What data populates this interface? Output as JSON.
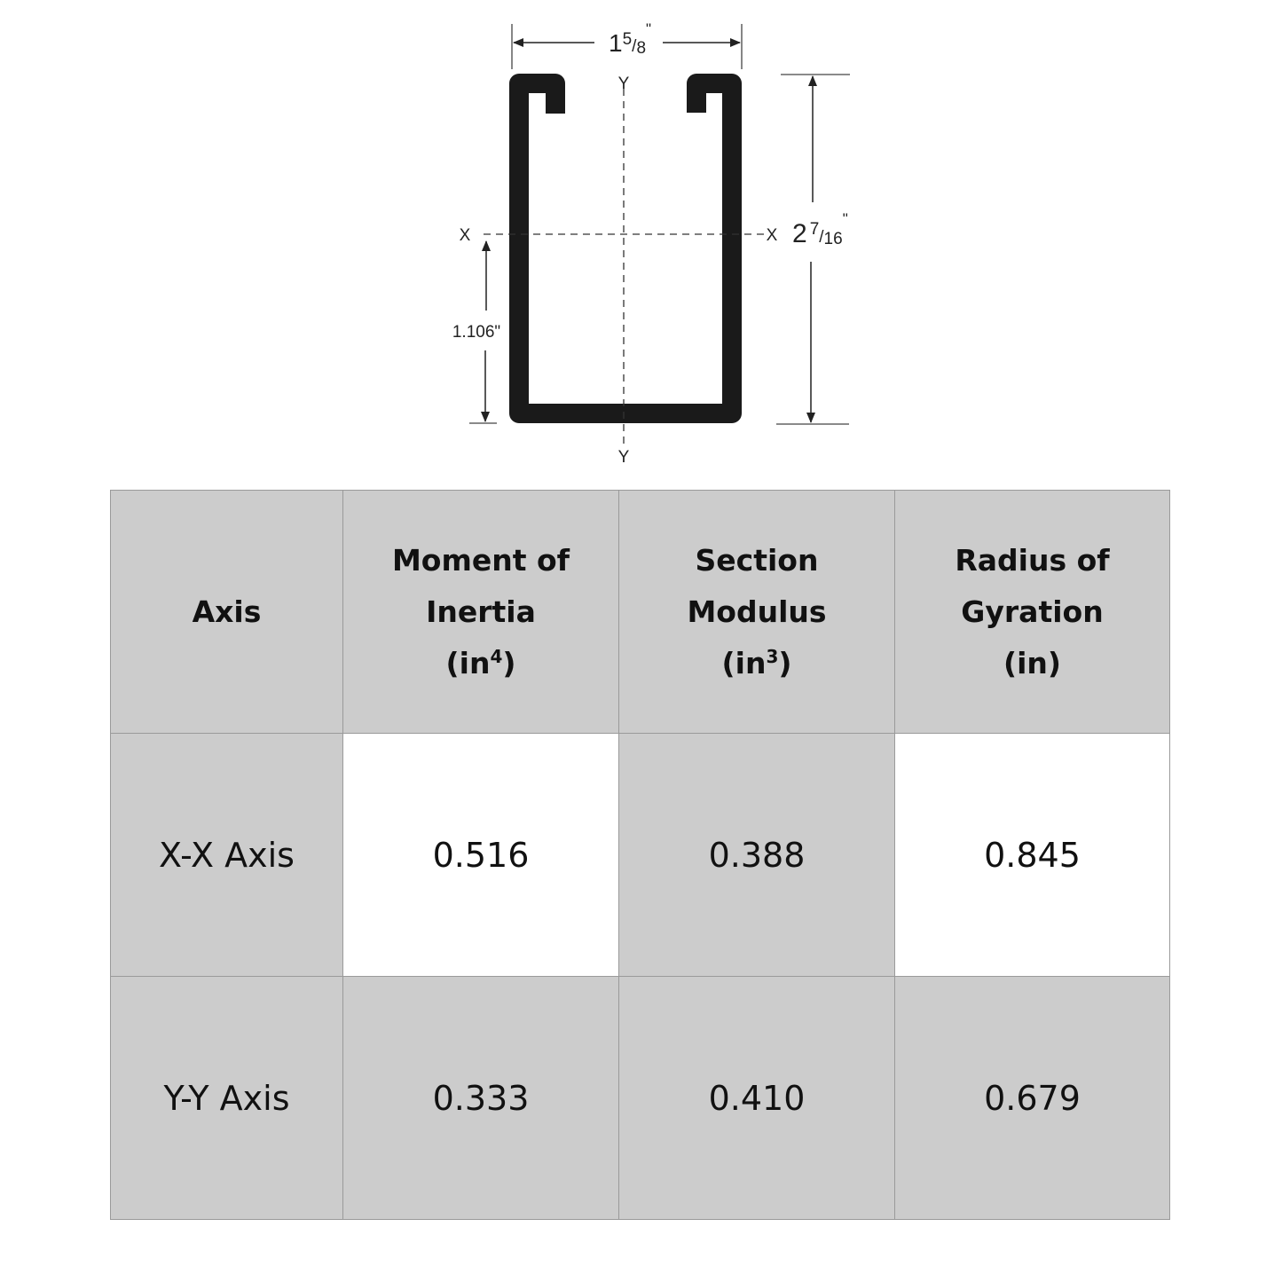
{
  "diagram": {
    "width_dim": {
      "whole": "1",
      "num": "5",
      "den": "8",
      "unit": "\""
    },
    "height_dim": {
      "whole": "2",
      "num": "7",
      "den": "16",
      "unit": "\""
    },
    "centroid_dim": "1.106\"",
    "axis_labels": {
      "x_left": "X",
      "x_right": "X",
      "y_top": "Y",
      "y_bottom": "Y"
    }
  },
  "table": {
    "headers": [
      {
        "lines": [
          "Axis"
        ]
      },
      {
        "lines": [
          "Moment of",
          "Inertia"
        ],
        "unit": "(in",
        "exp": "4",
        "unit_end": ")"
      },
      {
        "lines": [
          "Section",
          "Modulus"
        ],
        "unit": "(in",
        "exp": "3",
        "unit_end": ")"
      },
      {
        "lines": [
          "Radius of",
          "Gyration"
        ],
        "unit": "(in)"
      }
    ],
    "rows": [
      {
        "axis": "X-X Axis",
        "moment": "0.516",
        "modulus": "0.388",
        "radius": "0.845"
      },
      {
        "axis": "Y-Y Axis",
        "moment": "0.333",
        "modulus": "0.410",
        "radius": "0.679"
      }
    ]
  },
  "colors": {
    "header_bg": "#cccccc",
    "highlight_bg": "#ffffff",
    "border": "#9a9a9a"
  }
}
